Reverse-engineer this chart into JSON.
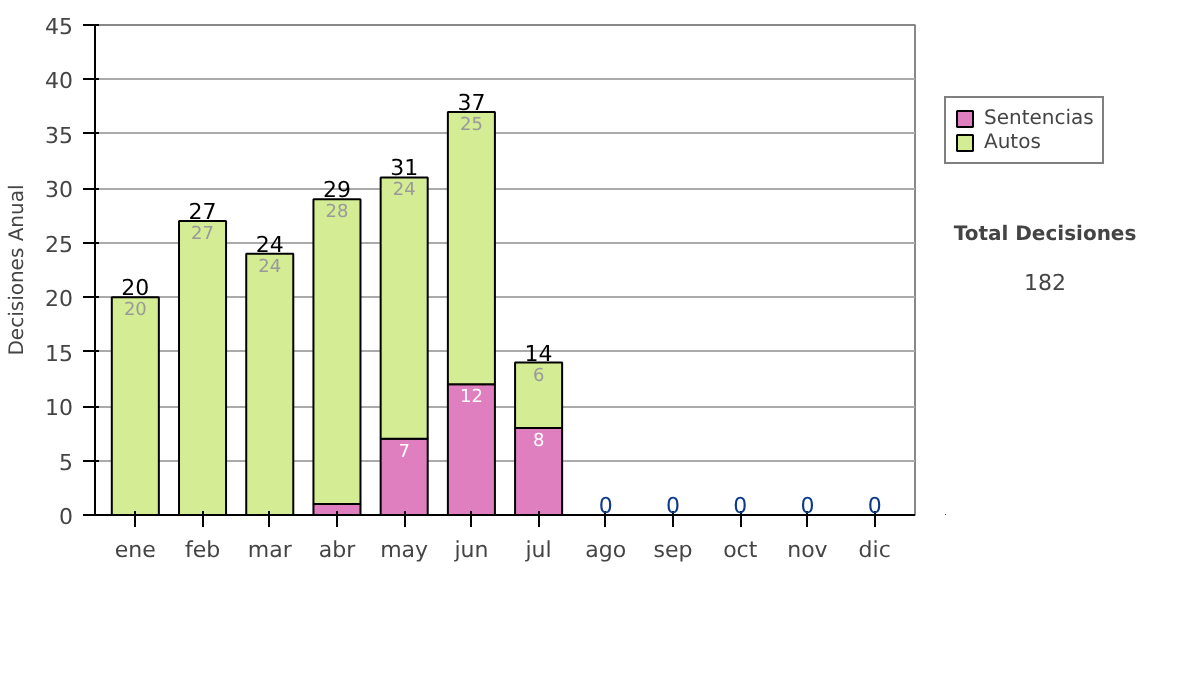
{
  "chart_data": {
    "type": "bar",
    "stacked": true,
    "ylabel": "Decisiones Anual",
    "categories": [
      "ene",
      "feb",
      "mar",
      "abr",
      "may",
      "jun",
      "jul",
      "ago",
      "sep",
      "oct",
      "nov",
      "dic"
    ],
    "series": [
      {
        "name": "Sentencias",
        "color": "#e07fc0",
        "values": [
          0,
          0,
          0,
          1,
          7,
          12,
          8,
          0,
          0,
          0,
          0,
          0
        ],
        "value_labels": [
          null,
          null,
          null,
          null,
          "7",
          "12",
          "8",
          null,
          null,
          null,
          null,
          null
        ]
      },
      {
        "name": "Autos",
        "color": "#d4ec94",
        "values": [
          20,
          27,
          24,
          28,
          24,
          25,
          6,
          0,
          0,
          0,
          0,
          0
        ],
        "value_labels": [
          "20",
          "27",
          "24",
          "28",
          "24",
          "25",
          "6",
          null,
          null,
          null,
          null,
          null
        ]
      }
    ],
    "totals": [
      "20",
      "27",
      "24",
      "29",
      "31",
      "37",
      "14",
      "0",
      "0",
      "0",
      "0",
      "0"
    ],
    "ylim": [
      0,
      45
    ],
    "yticks": [
      0,
      5,
      10,
      15,
      20,
      25,
      30,
      35,
      40,
      45
    ],
    "grid": "y",
    "legend": "right",
    "annotations": [
      "Total Decisiones",
      "182"
    ]
  }
}
